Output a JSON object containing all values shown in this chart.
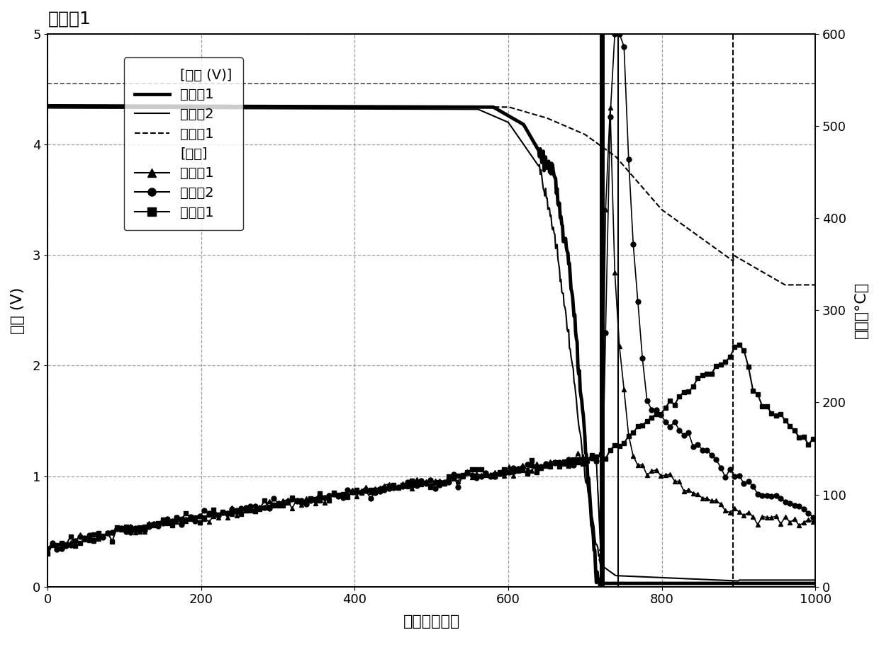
{
  "title": "比较例1",
  "xlabel": "时间（分钟）",
  "ylabel_left": "电压 (V)",
  "ylabel_right": "温度（°C）",
  "xlim": [
    0,
    1000
  ],
  "ylim_left": [
    0,
    5
  ],
  "ylim_right": [
    0,
    600
  ],
  "xticks": [
    0,
    200,
    400,
    600,
    800,
    1000
  ],
  "yticks_left": [
    0,
    1,
    2,
    3,
    4,
    5
  ],
  "yticks_right": [
    0,
    100,
    200,
    300,
    400,
    500,
    600
  ],
  "hline_y": 4.55,
  "vline1_x": 722,
  "vline1b_x": 743,
  "vline2_x": 893,
  "legend_voltage_title": "[电压 (V)]",
  "legend_temp_title": "[温度]",
  "background_color": "white",
  "grid_color": "#888888",
  "grid_linestyle": "--",
  "grid_alpha": 0.8
}
